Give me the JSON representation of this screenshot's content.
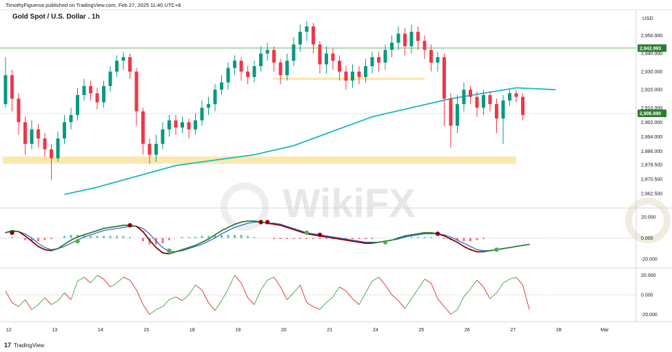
{
  "header": {
    "publisher": "TimothyFigueroa published on TradingView.com, Feb 27, 2025 11:40 UTC+8",
    "title": "Gold Spot / U.S. Dollar . 1h",
    "currency": "USD"
  },
  "footer": {
    "logo": "17",
    "brand": "TradingView"
  },
  "watermark": {
    "text": "WikiFX"
  },
  "colors": {
    "up": "#089981",
    "down": "#f23645",
    "ma": "#17b8c2",
    "macd_fast": "#2e7d32",
    "macd_slow": "#1e64c8",
    "macd_low": "#8b0000",
    "highlight": "#fbe29a",
    "hline": "#4caf50",
    "osc_up": "#4caf50",
    "osc_down": "#e53935"
  },
  "chart_data": [
    {
      "type": "candlestick",
      "title": "Gold Spot / U.S. Dollar . 1h",
      "ylim": [
        2856,
        2962
      ],
      "yticks": [
        "2,950.000",
        "2,940.000",
        "2,930.000",
        "2,920.000",
        "2,910.000",
        "2,902.000",
        "2,894.000",
        "2,886.000",
        "2,878.500",
        "2,870.500",
        "2,862.500"
      ],
      "ytick_values": [
        2950,
        2940,
        2930,
        2920,
        2910,
        2902,
        2894,
        2886,
        2878.5,
        2870.5,
        2862.5
      ],
      "xticks": [
        "12",
        "13",
        "14",
        "15",
        "18",
        "19",
        "20",
        "21",
        "24",
        "25",
        "26",
        "27",
        "28",
        "Mar"
      ],
      "xtick_positions": [
        0.5,
        7.5,
        14.5,
        21.5,
        28.5,
        35.5,
        42.5,
        49.5,
        56.5,
        63.5,
        70.5,
        77.5,
        84.5,
        91.5
      ],
      "price_labels": [
        {
          "label": "2,942.993",
          "value": 2943.0,
          "color": "#2e7d32"
        },
        {
          "label": "2,906.890",
          "value": 2906.9,
          "color": "#2e7d32"
        }
      ],
      "support_zone": {
        "x_from": 0,
        "x_to": 78,
        "y_from": 2879,
        "y_to": 2883
      },
      "resistance_zone": {
        "x_from": 41,
        "x_to": 64,
        "y": 2926
      },
      "horizontal_line": 2943,
      "moving_average": {
        "x": [
          9,
          14,
          20,
          26,
          32,
          38,
          44,
          50,
          56,
          62,
          68,
          73,
          78,
          84
        ],
        "y": [
          2862,
          2866,
          2872,
          2878,
          2881,
          2884,
          2889,
          2897,
          2905,
          2910,
          2915,
          2918,
          2921,
          2920
        ]
      },
      "candles": [
        {
          "o": 2912,
          "c": 2928,
          "h": 2938,
          "l": 2910
        },
        {
          "o": 2928,
          "c": 2915,
          "h": 2931,
          "l": 2908
        },
        {
          "o": 2915,
          "c": 2902,
          "h": 2918,
          "l": 2895
        },
        {
          "o": 2902,
          "c": 2890,
          "h": 2905,
          "l": 2884
        },
        {
          "o": 2890,
          "c": 2898,
          "h": 2903,
          "l": 2887
        },
        {
          "o": 2898,
          "c": 2893,
          "h": 2901,
          "l": 2888
        },
        {
          "o": 2893,
          "c": 2887,
          "h": 2896,
          "l": 2883
        },
        {
          "o": 2887,
          "c": 2882,
          "h": 2890,
          "l": 2870
        },
        {
          "o": 2882,
          "c": 2893,
          "h": 2897,
          "l": 2880
        },
        {
          "o": 2893,
          "c": 2902,
          "h": 2906,
          "l": 2890
        },
        {
          "o": 2902,
          "c": 2906,
          "h": 2910,
          "l": 2898
        },
        {
          "o": 2906,
          "c": 2917,
          "h": 2921,
          "l": 2903
        },
        {
          "o": 2917,
          "c": 2922,
          "h": 2926,
          "l": 2914
        },
        {
          "o": 2922,
          "c": 2918,
          "h": 2925,
          "l": 2914
        },
        {
          "o": 2918,
          "c": 2913,
          "h": 2921,
          "l": 2909
        },
        {
          "o": 2913,
          "c": 2922,
          "h": 2925,
          "l": 2910
        },
        {
          "o": 2922,
          "c": 2930,
          "h": 2933,
          "l": 2919
        },
        {
          "o": 2930,
          "c": 2936,
          "h": 2939,
          "l": 2927
        },
        {
          "o": 2936,
          "c": 2938,
          "h": 2941,
          "l": 2931
        },
        {
          "o": 2938,
          "c": 2930,
          "h": 2940,
          "l": 2926
        },
        {
          "o": 2930,
          "c": 2908,
          "h": 2932,
          "l": 2900
        },
        {
          "o": 2908,
          "c": 2890,
          "h": 2910,
          "l": 2884
        },
        {
          "o": 2890,
          "c": 2884,
          "h": 2893,
          "l": 2879
        },
        {
          "o": 2884,
          "c": 2890,
          "h": 2895,
          "l": 2880
        },
        {
          "o": 2890,
          "c": 2898,
          "h": 2902,
          "l": 2887
        },
        {
          "o": 2898,
          "c": 2903,
          "h": 2906,
          "l": 2894
        },
        {
          "o": 2903,
          "c": 2899,
          "h": 2906,
          "l": 2895
        },
        {
          "o": 2899,
          "c": 2902,
          "h": 2905,
          "l": 2896
        },
        {
          "o": 2902,
          "c": 2898,
          "h": 2904,
          "l": 2893
        },
        {
          "o": 2898,
          "c": 2903,
          "h": 2907,
          "l": 2895
        },
        {
          "o": 2903,
          "c": 2910,
          "h": 2914,
          "l": 2900
        },
        {
          "o": 2910,
          "c": 2912,
          "h": 2916,
          "l": 2906
        },
        {
          "o": 2912,
          "c": 2920,
          "h": 2923,
          "l": 2908
        },
        {
          "o": 2920,
          "c": 2924,
          "h": 2928,
          "l": 2917
        },
        {
          "o": 2924,
          "c": 2932,
          "h": 2935,
          "l": 2920
        },
        {
          "o": 2932,
          "c": 2936,
          "h": 2939,
          "l": 2928
        },
        {
          "o": 2936,
          "c": 2930,
          "h": 2938,
          "l": 2925
        },
        {
          "o": 2930,
          "c": 2927,
          "h": 2933,
          "l": 2923
        },
        {
          "o": 2927,
          "c": 2933,
          "h": 2936,
          "l": 2924
        },
        {
          "o": 2933,
          "c": 2940,
          "h": 2944,
          "l": 2930
        },
        {
          "o": 2940,
          "c": 2942,
          "h": 2946,
          "l": 2936
        },
        {
          "o": 2942,
          "c": 2935,
          "h": 2944,
          "l": 2930
        },
        {
          "o": 2935,
          "c": 2928,
          "h": 2937,
          "l": 2923
        },
        {
          "o": 2928,
          "c": 2936,
          "h": 2940,
          "l": 2925
        },
        {
          "o": 2936,
          "c": 2945,
          "h": 2949,
          "l": 2933
        },
        {
          "o": 2945,
          "c": 2952,
          "h": 2956,
          "l": 2941
        },
        {
          "o": 2952,
          "c": 2955,
          "h": 2958,
          "l": 2947
        },
        {
          "o": 2955,
          "c": 2945,
          "h": 2957,
          "l": 2940
        },
        {
          "o": 2945,
          "c": 2934,
          "h": 2947,
          "l": 2929
        },
        {
          "o": 2934,
          "c": 2940,
          "h": 2944,
          "l": 2929
        },
        {
          "o": 2940,
          "c": 2936,
          "h": 2943,
          "l": 2931
        },
        {
          "o": 2936,
          "c": 2930,
          "h": 2939,
          "l": 2925
        },
        {
          "o": 2930,
          "c": 2925,
          "h": 2933,
          "l": 2920
        },
        {
          "o": 2925,
          "c": 2930,
          "h": 2934,
          "l": 2921
        },
        {
          "o": 2930,
          "c": 2927,
          "h": 2933,
          "l": 2923
        },
        {
          "o": 2927,
          "c": 2933,
          "h": 2937,
          "l": 2924
        },
        {
          "o": 2933,
          "c": 2938,
          "h": 2941,
          "l": 2929
        },
        {
          "o": 2938,
          "c": 2935,
          "h": 2941,
          "l": 2930
        },
        {
          "o": 2935,
          "c": 2942,
          "h": 2945,
          "l": 2931
        },
        {
          "o": 2942,
          "c": 2946,
          "h": 2950,
          "l": 2938
        },
        {
          "o": 2946,
          "c": 2951,
          "h": 2955,
          "l": 2942
        },
        {
          "o": 2951,
          "c": 2944,
          "h": 2954,
          "l": 2939
        },
        {
          "o": 2944,
          "c": 2952,
          "h": 2956,
          "l": 2940
        },
        {
          "o": 2952,
          "c": 2947,
          "h": 2955,
          "l": 2942
        },
        {
          "o": 2947,
          "c": 2942,
          "h": 2950,
          "l": 2937
        },
        {
          "o": 2942,
          "c": 2935,
          "h": 2945,
          "l": 2930
        },
        {
          "o": 2935,
          "c": 2938,
          "h": 2941,
          "l": 2930
        },
        {
          "o": 2938,
          "c": 2915,
          "h": 2940,
          "l": 2900
        },
        {
          "o": 2915,
          "c": 2900,
          "h": 2918,
          "l": 2888
        },
        {
          "o": 2900,
          "c": 2912,
          "h": 2917,
          "l": 2896
        },
        {
          "o": 2912,
          "c": 2920,
          "h": 2924,
          "l": 2908
        },
        {
          "o": 2920,
          "c": 2916,
          "h": 2922,
          "l": 2912
        },
        {
          "o": 2916,
          "c": 2910,
          "h": 2919,
          "l": 2905
        },
        {
          "o": 2910,
          "c": 2917,
          "h": 2920,
          "l": 2906
        },
        {
          "o": 2917,
          "c": 2912,
          "h": 2919,
          "l": 2908
        },
        {
          "o": 2912,
          "c": 2904,
          "h": 2915,
          "l": 2896
        },
        {
          "o": 2904,
          "c": 2914,
          "h": 2917,
          "l": 2890
        },
        {
          "o": 2914,
          "c": 2918,
          "h": 2920,
          "l": 2911
        },
        {
          "o": 2918,
          "c": 2916,
          "h": 2920,
          "l": 2913
        },
        {
          "o": 2916,
          "c": 2906,
          "h": 2918,
          "l": 2903
        }
      ]
    },
    {
      "type": "line",
      "title": "MACD",
      "ylim": [
        -27,
        27
      ],
      "yticks": [
        "20.000",
        "0.000",
        "-20.000"
      ],
      "ytick_values": [
        20,
        0,
        -20
      ],
      "series": [
        {
          "values": [
            5,
            7,
            6,
            2,
            -3,
            -8,
            -11,
            -12,
            -10,
            -6,
            -2,
            1,
            3,
            5,
            7,
            9,
            10,
            11,
            12,
            12,
            11,
            6,
            -2,
            -9,
            -14,
            -15,
            -13,
            -11,
            -9,
            -7,
            -4,
            -1,
            3,
            7,
            10,
            13,
            15,
            16,
            16,
            15,
            14,
            13,
            12,
            10,
            8,
            6,
            4,
            3,
            2,
            1,
            0,
            -1,
            -2,
            -3,
            -4,
            -5,
            -5,
            -4,
            -3,
            -2,
            0,
            2,
            3,
            4,
            5,
            5,
            4,
            2,
            -1,
            -4,
            -8,
            -11,
            -13,
            -13,
            -12,
            -11,
            -10,
            -9,
            -8,
            -7,
            -6
          ]
        },
        {
          "values": [
            5,
            6,
            6,
            4,
            0,
            -5,
            -9,
            -11,
            -10,
            -8,
            -5,
            -2,
            1,
            3,
            5,
            7,
            8,
            9,
            10,
            11,
            11,
            9,
            4,
            -3,
            -9,
            -13,
            -13,
            -12,
            -10,
            -8,
            -6,
            -3,
            0,
            4,
            7,
            10,
            12,
            14,
            15,
            15,
            14,
            14,
            13,
            11,
            9,
            7,
            5,
            4,
            3,
            2,
            1,
            0,
            -1,
            -2,
            -3,
            -4,
            -4,
            -4,
            -3,
            -2,
            -1,
            1,
            2,
            3,
            4,
            4,
            4,
            3,
            1,
            -2,
            -5,
            -8,
            -11,
            -12,
            -12,
            -11,
            -10,
            -9,
            -8,
            -7,
            -6
          ]
        }
      ],
      "histogram": [
        0,
        1,
        0,
        -2,
        -3,
        -3,
        -2,
        -1,
        0,
        2,
        3,
        3,
        2,
        2,
        2,
        2,
        2,
        2,
        2,
        1,
        0,
        -3,
        -6,
        -6,
        -5,
        -2,
        0,
        1,
        1,
        1,
        2,
        2,
        3,
        3,
        3,
        3,
        3,
        2,
        1,
        0,
        0,
        -1,
        -1,
        -1,
        -1,
        -1,
        -1,
        -1,
        -1,
        -1,
        -1,
        -1,
        -1,
        -1,
        -1,
        -1,
        -1,
        0,
        0,
        0,
        1,
        1,
        1,
        1,
        1,
        1,
        0,
        -1,
        -2,
        -2,
        -3,
        -3,
        -2,
        -1,
        0,
        0,
        0,
        0,
        0,
        0,
        0
      ],
      "cross_markers": [
        {
          "x": 1,
          "v": 5,
          "color": "#8b0000"
        },
        {
          "x": 11,
          "v": -3,
          "color": "#4caf50"
        },
        {
          "x": 19,
          "v": 12,
          "color": "#8b0000"
        },
        {
          "x": 25,
          "v": -12,
          "color": "#4caf50"
        },
        {
          "x": 39,
          "v": 15,
          "color": "#8b0000"
        },
        {
          "x": 40,
          "v": 15,
          "color": "#8b0000"
        },
        {
          "x": 46,
          "v": 5,
          "color": "#4caf50"
        },
        {
          "x": 48,
          "v": 3,
          "color": "#8b0000"
        },
        {
          "x": 58,
          "v": -4,
          "color": "#4caf50"
        },
        {
          "x": 66,
          "v": 4,
          "color": "#8b0000"
        },
        {
          "x": 75,
          "v": -11,
          "color": "#4caf50"
        }
      ]
    },
    {
      "type": "line",
      "title": "Oscillator",
      "ylim": [
        -26,
        26
      ],
      "yticks": [
        "20.000",
        "0.000",
        "-20.000"
      ],
      "ytick_values": [
        20,
        0,
        -20
      ],
      "values": [
        4,
        -8,
        -12,
        -5,
        -15,
        -10,
        -3,
        -10,
        -6,
        2,
        -5,
        14,
        18,
        12,
        20,
        16,
        8,
        12,
        18,
        15,
        5,
        -10,
        -20,
        -15,
        -12,
        -5,
        -2,
        -6,
        0,
        10,
        5,
        -8,
        -16,
        -6,
        6,
        20,
        12,
        -3,
        -10,
        5,
        15,
        18,
        8,
        -5,
        2,
        10,
        -8,
        -12,
        -15,
        -8,
        -2,
        8,
        4,
        -4,
        -10,
        2,
        14,
        18,
        10,
        0,
        -6,
        -14,
        -4,
        6,
        16,
        12,
        -4,
        -12,
        -20,
        -15,
        -2,
        6,
        15,
        8,
        -4,
        2,
        12,
        16,
        18,
        10,
        -15
      ]
    }
  ]
}
